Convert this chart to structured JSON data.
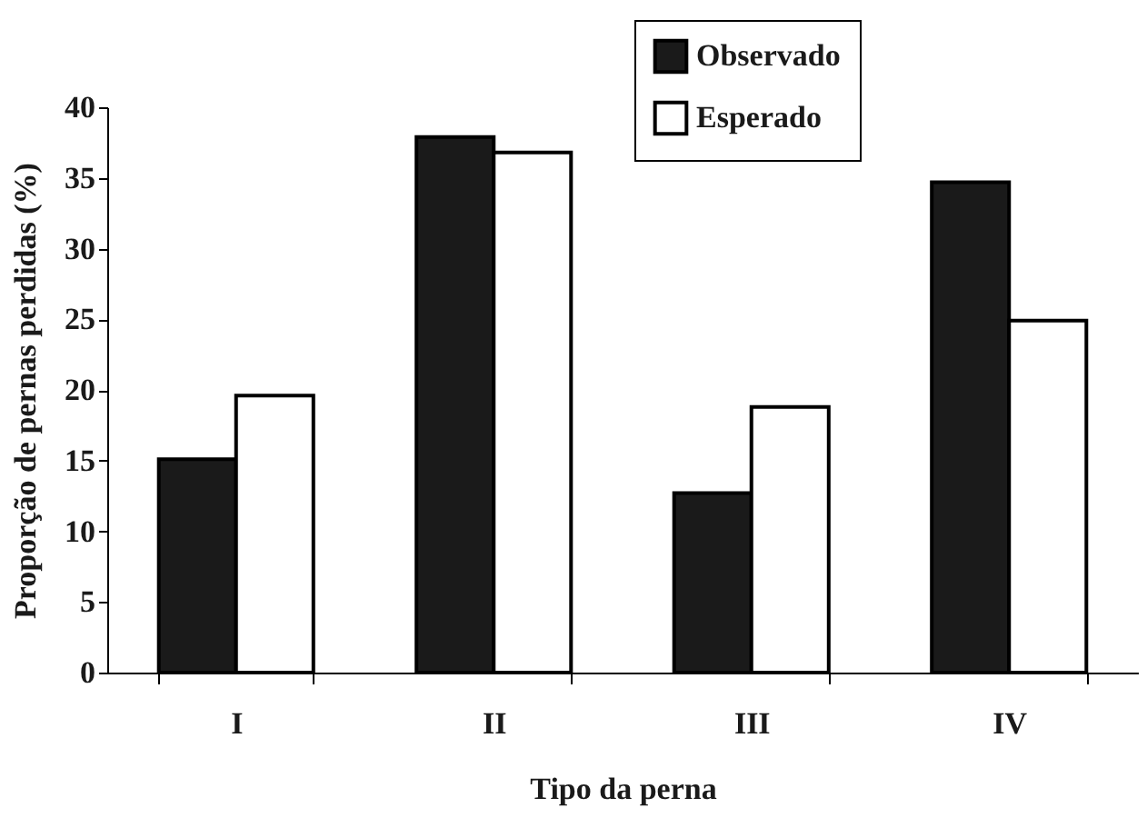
{
  "chart_data": {
    "type": "bar",
    "xlabel": "Tipo da perna",
    "ylabel": "Proporção de pernas perdidas (%)",
    "categories": [
      "I",
      "II",
      "III",
      "IV"
    ],
    "series": [
      {
        "name": "Observado",
        "color": "#1a1a1a",
        "values": [
          15.1,
          37.9,
          12.7,
          34.7
        ]
      },
      {
        "name": "Esperado",
        "color": "#ffffff",
        "values": [
          19.6,
          36.8,
          18.8,
          24.9
        ]
      }
    ],
    "ylim": [
      0,
      40
    ],
    "yticks": [
      0,
      5,
      10,
      15,
      20,
      25,
      30,
      35,
      40
    ],
    "grid": false,
    "legend": "top right"
  }
}
